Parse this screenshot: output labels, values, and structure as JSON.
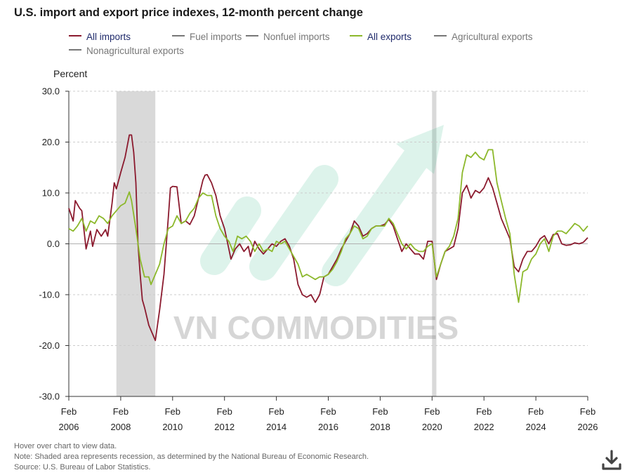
{
  "chart_data": {
    "type": "line",
    "title": "U.S. import and export price indexes, 12-month percent change",
    "ylabel": "Percent",
    "ylim": [
      -30,
      30
    ],
    "yticks": [
      "30.0",
      "20.0",
      "10.0",
      "0.0",
      "-10.0",
      "-20.0",
      "-30.0"
    ],
    "xlim": [
      "2006-02",
      "2026-02"
    ],
    "xticks": [
      {
        "month": "Feb",
        "year": "2006",
        "date": "2006-02"
      },
      {
        "month": "Feb",
        "year": "2008",
        "date": "2008-02"
      },
      {
        "month": "Feb",
        "year": "2010",
        "date": "2010-02"
      },
      {
        "month": "Feb",
        "year": "2012",
        "date": "2012-02"
      },
      {
        "month": "Feb",
        "year": "2014",
        "date": "2014-02"
      },
      {
        "month": "Feb",
        "year": "2016",
        "date": "2016-02"
      },
      {
        "month": "Feb",
        "year": "2018",
        "date": "2018-02"
      },
      {
        "month": "Feb",
        "year": "2020",
        "date": "2020-02"
      },
      {
        "month": "Feb",
        "year": "2022",
        "date": "2022-02"
      },
      {
        "month": "Feb",
        "year": "2024",
        "date": "2024-02"
      },
      {
        "month": "Feb",
        "year": "2026",
        "date": "2026-02"
      }
    ],
    "grid": true,
    "legend_position": "top",
    "recessions": [
      {
        "start": "2007-12",
        "end": "2009-06"
      },
      {
        "start": "2020-02",
        "end": "2020-04"
      }
    ],
    "legend": [
      {
        "name": "All imports",
        "color": "#8b1a2e",
        "active": true
      },
      {
        "name": "Fuel imports",
        "color": "#777777",
        "active": false
      },
      {
        "name": "Nonfuel imports",
        "color": "#777777",
        "active": false
      },
      {
        "name": "All exports",
        "color": "#8cb82b",
        "active": true
      },
      {
        "name": "Agricultural exports",
        "color": "#777777",
        "active": false
      },
      {
        "name": "Nonagricultural exports",
        "color": "#777777",
        "active": false
      }
    ],
    "series": [
      {
        "name": "All imports",
        "color": "#8b1a2e",
        "points": [
          [
            "2006-02",
            7.0
          ],
          [
            "2006-04",
            4.5
          ],
          [
            "2006-05",
            8.5
          ],
          [
            "2006-07",
            7.0
          ],
          [
            "2006-08",
            6.5
          ],
          [
            "2006-10",
            -1.0
          ],
          [
            "2006-12",
            2.5
          ],
          [
            "2007-01",
            -0.5
          ],
          [
            "2007-03",
            2.8
          ],
          [
            "2007-05",
            1.5
          ],
          [
            "2007-07",
            2.8
          ],
          [
            "2007-08",
            1.5
          ],
          [
            "2007-10",
            8.0
          ],
          [
            "2007-11",
            12.0
          ],
          [
            "2007-12",
            10.8
          ],
          [
            "2008-02",
            14.0
          ],
          [
            "2008-04",
            17.0
          ],
          [
            "2008-06",
            21.4
          ],
          [
            "2008-07",
            21.4
          ],
          [
            "2008-08",
            18.0
          ],
          [
            "2008-09",
            12.0
          ],
          [
            "2008-10",
            0.0
          ],
          [
            "2008-11",
            -6.0
          ],
          [
            "2008-12",
            -11.0
          ],
          [
            "2009-01",
            -12.5
          ],
          [
            "2009-03",
            -16.0
          ],
          [
            "2009-05",
            -18.0
          ],
          [
            "2009-06",
            -19.0
          ],
          [
            "2009-08",
            -13.0
          ],
          [
            "2009-10",
            -6.0
          ],
          [
            "2009-12",
            5.0
          ],
          [
            "2010-01",
            11.0
          ],
          [
            "2010-02",
            11.3
          ],
          [
            "2010-04",
            11.2
          ],
          [
            "2010-06",
            4.0
          ],
          [
            "2010-08",
            4.5
          ],
          [
            "2010-10",
            3.8
          ],
          [
            "2010-12",
            5.5
          ],
          [
            "2011-02",
            9.0
          ],
          [
            "2011-04",
            12.5
          ],
          [
            "2011-05",
            13.5
          ],
          [
            "2011-06",
            13.6
          ],
          [
            "2011-08",
            12.0
          ],
          [
            "2011-10",
            9.5
          ],
          [
            "2011-12",
            5.5
          ],
          [
            "2012-02",
            3.0
          ],
          [
            "2012-04",
            -1.0
          ],
          [
            "2012-05",
            -3.0
          ],
          [
            "2012-07",
            -1.0
          ],
          [
            "2012-09",
            0.0
          ],
          [
            "2012-11",
            -1.5
          ],
          [
            "2013-01",
            -0.5
          ],
          [
            "2013-02",
            -2.5
          ],
          [
            "2013-04",
            0.5
          ],
          [
            "2013-06",
            -1.0
          ],
          [
            "2013-08",
            -2.0
          ],
          [
            "2013-10",
            -1.0
          ],
          [
            "2013-12",
            0.0
          ],
          [
            "2014-02",
            -0.5
          ],
          [
            "2014-04",
            0.5
          ],
          [
            "2014-06",
            1.0
          ],
          [
            "2014-08",
            -0.5
          ],
          [
            "2014-10",
            -3.0
          ],
          [
            "2014-12",
            -8.0
          ],
          [
            "2015-02",
            -10.0
          ],
          [
            "2015-04",
            -10.5
          ],
          [
            "2015-06",
            -10.0
          ],
          [
            "2015-08",
            -11.5
          ],
          [
            "2015-10",
            -10.0
          ],
          [
            "2015-12",
            -6.5
          ],
          [
            "2016-02",
            -6.0
          ],
          [
            "2016-04",
            -4.5
          ],
          [
            "2016-06",
            -3.0
          ],
          [
            "2016-08",
            -1.0
          ],
          [
            "2016-10",
            0.5
          ],
          [
            "2016-12",
            2.0
          ],
          [
            "2017-02",
            4.5
          ],
          [
            "2017-04",
            3.5
          ],
          [
            "2017-06",
            1.5
          ],
          [
            "2017-08",
            2.0
          ],
          [
            "2017-10",
            3.0
          ],
          [
            "2017-12",
            3.5
          ],
          [
            "2018-02",
            3.5
          ],
          [
            "2018-04",
            3.8
          ],
          [
            "2018-06",
            4.8
          ],
          [
            "2018-08",
            3.5
          ],
          [
            "2018-10",
            1.0
          ],
          [
            "2018-12",
            -1.5
          ],
          [
            "2019-02",
            0.0
          ],
          [
            "2019-04",
            -1.0
          ],
          [
            "2019-06",
            -2.0
          ],
          [
            "2019-08",
            -2.0
          ],
          [
            "2019-10",
            -3.0
          ],
          [
            "2019-12",
            0.5
          ],
          [
            "2020-02",
            0.5
          ],
          [
            "2020-04",
            -7.0
          ],
          [
            "2020-06",
            -4.0
          ],
          [
            "2020-08",
            -1.5
          ],
          [
            "2020-10",
            -1.0
          ],
          [
            "2020-12",
            -0.5
          ],
          [
            "2021-02",
            3.0
          ],
          [
            "2021-04",
            10.0
          ],
          [
            "2021-06",
            11.5
          ],
          [
            "2021-08",
            9.0
          ],
          [
            "2021-10",
            10.5
          ],
          [
            "2021-12",
            10.0
          ],
          [
            "2022-02",
            11.0
          ],
          [
            "2022-04",
            13.0
          ],
          [
            "2022-06",
            11.0
          ],
          [
            "2022-08",
            8.0
          ],
          [
            "2022-10",
            5.0
          ],
          [
            "2022-12",
            3.0
          ],
          [
            "2023-02",
            1.0
          ],
          [
            "2023-04",
            -4.5
          ],
          [
            "2023-06",
            -5.5
          ],
          [
            "2023-08",
            -3.0
          ],
          [
            "2023-10",
            -1.5
          ],
          [
            "2023-12",
            -1.5
          ],
          [
            "2024-02",
            -0.5
          ],
          [
            "2024-04",
            1.0
          ],
          [
            "2024-06",
            1.6
          ],
          [
            "2024-08",
            0.0
          ],
          [
            "2024-10",
            1.8
          ],
          [
            "2024-12",
            2.0
          ],
          [
            "2025-02",
            0.0
          ],
          [
            "2025-04",
            -0.3
          ],
          [
            "2025-06",
            -0.2
          ],
          [
            "2025-08",
            0.2
          ],
          [
            "2025-10",
            0.0
          ],
          [
            "2025-12",
            0.3
          ],
          [
            "2026-02",
            1.2
          ]
        ]
      },
      {
        "name": "All exports",
        "color": "#8cb82b",
        "points": [
          [
            "2006-02",
            3.0
          ],
          [
            "2006-04",
            2.5
          ],
          [
            "2006-06",
            3.5
          ],
          [
            "2006-08",
            5.0
          ],
          [
            "2006-10",
            2.5
          ],
          [
            "2006-12",
            4.5
          ],
          [
            "2007-02",
            4.0
          ],
          [
            "2007-04",
            5.5
          ],
          [
            "2007-06",
            5.0
          ],
          [
            "2007-08",
            4.0
          ],
          [
            "2007-10",
            5.5
          ],
          [
            "2007-12",
            6.5
          ],
          [
            "2008-02",
            7.5
          ],
          [
            "2008-04",
            8.0
          ],
          [
            "2008-06",
            10.2
          ],
          [
            "2008-07",
            8.5
          ],
          [
            "2008-09",
            3.0
          ],
          [
            "2008-11",
            -3.0
          ],
          [
            "2009-01",
            -6.5
          ],
          [
            "2009-03",
            -6.5
          ],
          [
            "2009-04",
            -8.0
          ],
          [
            "2009-06",
            -6.0
          ],
          [
            "2009-08",
            -4.0
          ],
          [
            "2009-10",
            0.0
          ],
          [
            "2009-12",
            3.0
          ],
          [
            "2010-02",
            3.5
          ],
          [
            "2010-04",
            5.5
          ],
          [
            "2010-06",
            4.0
          ],
          [
            "2010-08",
            4.5
          ],
          [
            "2010-10",
            6.0
          ],
          [
            "2010-12",
            7.0
          ],
          [
            "2011-02",
            9.0
          ],
          [
            "2011-04",
            10.0
          ],
          [
            "2011-06",
            9.5
          ],
          [
            "2011-08",
            9.5
          ],
          [
            "2011-10",
            5.5
          ],
          [
            "2011-12",
            3.0
          ],
          [
            "2012-02",
            1.5
          ],
          [
            "2012-04",
            0.5
          ],
          [
            "2012-06",
            -1.5
          ],
          [
            "2012-08",
            1.5
          ],
          [
            "2012-10",
            1.0
          ],
          [
            "2012-12",
            1.5
          ],
          [
            "2013-02",
            0.5
          ],
          [
            "2013-04",
            -1.5
          ],
          [
            "2013-06",
            0.0
          ],
          [
            "2013-08",
            -1.5
          ],
          [
            "2013-10",
            -1.0
          ],
          [
            "2013-12",
            -1.5
          ],
          [
            "2014-02",
            0.5
          ],
          [
            "2014-04",
            0.0
          ],
          [
            "2014-06",
            0.5
          ],
          [
            "2014-08",
            -1.0
          ],
          [
            "2014-10",
            -2.5
          ],
          [
            "2014-12",
            -4.0
          ],
          [
            "2015-02",
            -6.5
          ],
          [
            "2015-04",
            -6.0
          ],
          [
            "2015-06",
            -6.5
          ],
          [
            "2015-08",
            -7.0
          ],
          [
            "2015-10",
            -6.5
          ],
          [
            "2015-12",
            -6.5
          ],
          [
            "2016-02",
            -6.0
          ],
          [
            "2016-04",
            -5.0
          ],
          [
            "2016-06",
            -3.5
          ],
          [
            "2016-08",
            -1.5
          ],
          [
            "2016-10",
            1.0
          ],
          [
            "2016-12",
            2.0
          ],
          [
            "2017-02",
            3.5
          ],
          [
            "2017-04",
            3.0
          ],
          [
            "2017-06",
            1.0
          ],
          [
            "2017-08",
            1.5
          ],
          [
            "2017-10",
            3.0
          ],
          [
            "2017-12",
            3.5
          ],
          [
            "2018-02",
            3.5
          ],
          [
            "2018-04",
            3.5
          ],
          [
            "2018-06",
            5.0
          ],
          [
            "2018-08",
            4.0
          ],
          [
            "2018-10",
            2.0
          ],
          [
            "2018-12",
            0.0
          ],
          [
            "2019-02",
            -1.0
          ],
          [
            "2019-04",
            0.0
          ],
          [
            "2019-06",
            -1.0
          ],
          [
            "2019-08",
            -1.5
          ],
          [
            "2019-10",
            -1.5
          ],
          [
            "2019-12",
            -0.5
          ],
          [
            "2020-02",
            0.0
          ],
          [
            "2020-04",
            -6.5
          ],
          [
            "2020-06",
            -4.0
          ],
          [
            "2020-08",
            -1.5
          ],
          [
            "2020-10",
            -0.5
          ],
          [
            "2020-12",
            1.5
          ],
          [
            "2021-02",
            5.0
          ],
          [
            "2021-04",
            14.0
          ],
          [
            "2021-06",
            17.5
          ],
          [
            "2021-08",
            17.0
          ],
          [
            "2021-10",
            18.0
          ],
          [
            "2021-12",
            17.0
          ],
          [
            "2022-02",
            16.5
          ],
          [
            "2022-04",
            18.5
          ],
          [
            "2022-06",
            18.5
          ],
          [
            "2022-08",
            12.0
          ],
          [
            "2022-10",
            8.5
          ],
          [
            "2022-12",
            5.0
          ],
          [
            "2023-02",
            2.0
          ],
          [
            "2023-04",
            -6.0
          ],
          [
            "2023-06",
            -11.5
          ],
          [
            "2023-08",
            -5.5
          ],
          [
            "2023-10",
            -5.0
          ],
          [
            "2023-12",
            -3.0
          ],
          [
            "2024-02",
            -2.0
          ],
          [
            "2024-04",
            0.0
          ],
          [
            "2024-06",
            1.0
          ],
          [
            "2024-08",
            -1.5
          ],
          [
            "2024-10",
            1.5
          ],
          [
            "2024-12",
            2.5
          ],
          [
            "2025-02",
            2.5
          ],
          [
            "2025-04",
            2.0
          ],
          [
            "2025-06",
            3.0
          ],
          [
            "2025-08",
            4.0
          ],
          [
            "2025-10",
            3.5
          ],
          [
            "2025-12",
            2.5
          ],
          [
            "2026-02",
            3.5
          ]
        ]
      }
    ]
  },
  "watermark": {
    "text": "VN COMMODITIES"
  },
  "footnotes": {
    "hover": "Hover over chart to view data.",
    "note": "Note: Shaded area represents recession, as determined by the National Bureau of Economic Research.",
    "source": "Source: U.S. Bureau of Labor Statistics."
  },
  "icons": {
    "download": "download-icon"
  },
  "colors": {
    "grid": "#cccccc",
    "zero_line": "#b0b0b0",
    "recession": "#d9d9d9",
    "axis": "#333333"
  }
}
